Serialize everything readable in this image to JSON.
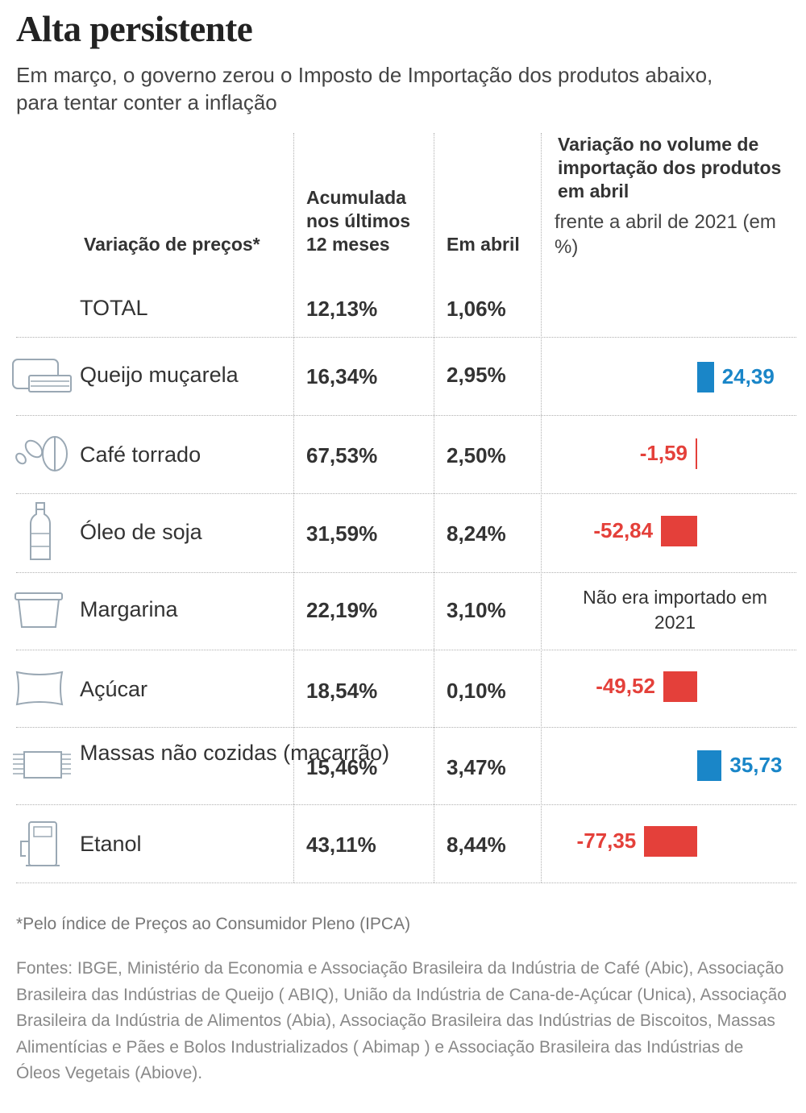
{
  "title": "Alta persistente",
  "subtitle": "Em março, o governo zerou o Imposto de Importação dos produtos abaixo, para tentar conter a inflação",
  "columns": {
    "price": "Variação de preços*",
    "accumulated": "Acumulada nos últimos 12 meses",
    "april": "Em abril",
    "volume_title": "Variação no volume de importação dos produtos em abril",
    "volume_sub": "frente a abril de 2021 (em %)"
  },
  "total": {
    "label": "TOTAL",
    "accumulated": "12,13%",
    "april": "1,06%"
  },
  "rows": [
    {
      "name": "Queijo muçarela",
      "icon": "cheese-icon",
      "accumulated": "16,34%",
      "april": "2,95%",
      "volume_label": "24,39"
    },
    {
      "name": "Café torrado",
      "icon": "coffee-beans-icon",
      "accumulated": "67,53%",
      "april": "2,50%",
      "volume_label": "-1,59"
    },
    {
      "name": "Óleo de soja",
      "icon": "oil-bottle-icon",
      "accumulated": "31,59%",
      "april": "8,24%",
      "volume_label": "-52,84"
    },
    {
      "name": "Margarina",
      "icon": "margarine-tub-icon",
      "accumulated": "22,19%",
      "april": "3,10%",
      "volume_label": ""
    },
    {
      "name": "Açúcar",
      "icon": "sugar-bag-icon",
      "accumulated": "18,54%",
      "april": "0,10%",
      "volume_label": "-49,52"
    },
    {
      "name": "Massas não cozidas (macarrão)",
      "icon": "pasta-package-icon",
      "accumulated": "15,46%",
      "april": "3,47%",
      "volume_label": "35,73"
    },
    {
      "name": "Etanol",
      "icon": "fuel-pump-icon",
      "accumulated": "43,11%",
      "april": "8,44%",
      "volume_label": "-77,35"
    }
  ],
  "margarina_note": "Não era importado em 2021",
  "chart_data": {
    "type": "bar",
    "categories": [
      "Queijo muçarela",
      "Café torrado",
      "Óleo de soja",
      "Margarina",
      "Açúcar",
      "Massas não cozidas (macarrão)",
      "Etanol"
    ],
    "values": [
      24.39,
      -1.59,
      -52.84,
      null,
      -49.52,
      35.73,
      -77.35
    ],
    "title": "Variação no volume de importação dos produtos em abril",
    "subtitle": "frente a abril de 2021 (em %)"
  },
  "colors": {
    "positive": "#1a86c8",
    "negative": "#e4403a"
  },
  "footnote": "*Pelo índice de Preços ao Consumidor Pleno (IPCA)",
  "sources": "Fontes: IBGE, Ministério da Economia e Associação Brasileira da Indústria de Café (Abic), Associação Brasileira das Indústrias de Queijo ( ABIQ), União da Indústria de Cana-de-Açúcar (Unica), Associação Brasileira da Indústria de Alimentos (Abia), Associação Brasileira das Indústrias de Biscoitos, Massas Alimentícias e Pães e Bolos Industrializados ( Abimap ) e Associação Brasileira das Indústrias de Óleos Vegetais (Abiove)."
}
